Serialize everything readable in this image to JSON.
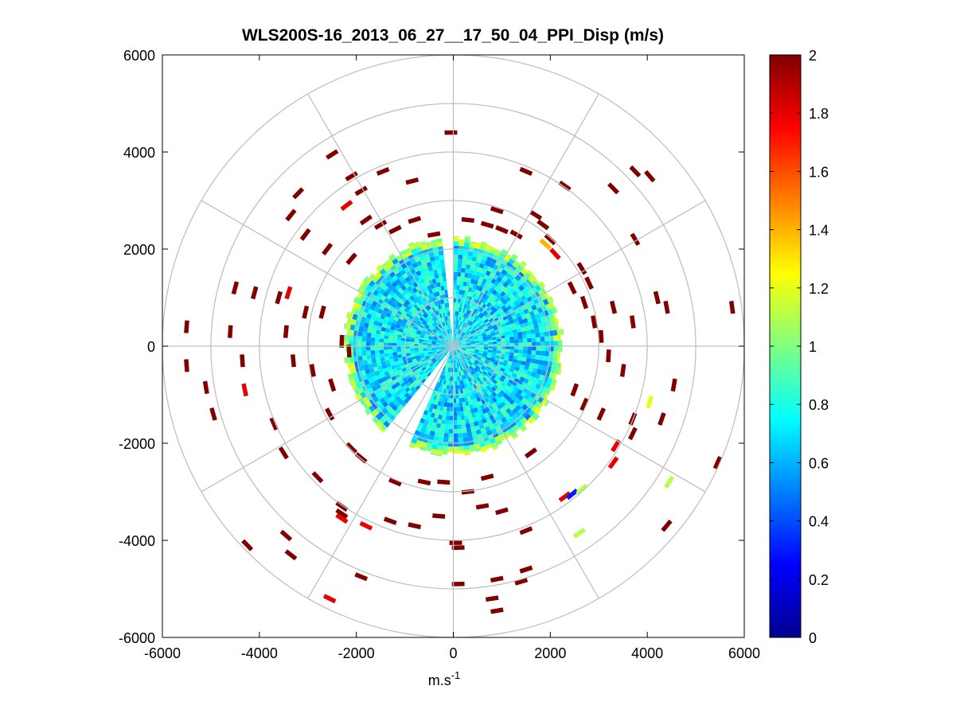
{
  "chart_data": {
    "type": "heatmap",
    "plot_style": "polar-ppi",
    "title": "WLS200S-16_2013_06_27__17_50_04_PPI_Disp (m/s)",
    "xlabel": "m.s",
    "xlabel_sup": "-1",
    "ylabel": "",
    "xlim": [
      -6000,
      6000
    ],
    "ylim": [
      -6000,
      6000
    ],
    "xticks": [
      -6000,
      -4000,
      -2000,
      0,
      2000,
      4000,
      6000
    ],
    "yticks": [
      -6000,
      -4000,
      -2000,
      0,
      2000,
      4000,
      6000
    ],
    "xtick_labels": [
      "-6000",
      "-4000",
      "-2000",
      "0",
      "2000",
      "4000",
      "6000"
    ],
    "ytick_labels": [
      "-6000",
      "-4000",
      "-2000",
      "0",
      "2000",
      "4000",
      "6000"
    ],
    "polar_grid": {
      "ring_radii": [
        1000,
        2000,
        3000,
        4000,
        5000,
        6000
      ],
      "spoke_angles_deg": [
        0,
        30,
        60,
        90,
        120,
        150,
        180,
        210,
        240,
        270,
        300,
        330
      ],
      "color": "#c0c0c0"
    },
    "colorbar": {
      "colormap": "jet",
      "range": [
        0,
        2
      ],
      "ticks": [
        0,
        0.2,
        0.4,
        0.6,
        0.8,
        1,
        1.2,
        1.4,
        1.6,
        1.8,
        2
      ],
      "tick_labels": [
        "0",
        "0.2",
        "0.4",
        "0.6",
        "0.8",
        "1",
        "1.2",
        "1.4",
        "1.6",
        "1.8",
        "2"
      ]
    },
    "dense_region": {
      "max_range": 2300,
      "typical_value": 0.7,
      "edge_values": [
        1.0,
        1.15
      ],
      "gap_sectors_deg": [
        [
          -6,
          0
        ],
        [
          -155,
          -140
        ]
      ]
    },
    "scattered_cells": [
      {
        "x": -2500,
        "y": 3950,
        "v": 2
      },
      {
        "x": -2100,
        "y": 3500,
        "v": 2
      },
      {
        "x": -1900,
        "y": 3200,
        "v": 2
      },
      {
        "x": -2200,
        "y": 2900,
        "v": 1.8
      },
      {
        "x": -1800,
        "y": 2600,
        "v": 2
      },
      {
        "x": -1500,
        "y": 2500,
        "v": 2
      },
      {
        "x": -1200,
        "y": 2400,
        "v": 2
      },
      {
        "x": -800,
        "y": 2600,
        "v": 2
      },
      {
        "x": -400,
        "y": 2300,
        "v": 2
      },
      {
        "x": -3200,
        "y": 3150,
        "v": 2
      },
      {
        "x": -3350,
        "y": 2700,
        "v": 2
      },
      {
        "x": -3050,
        "y": 2300,
        "v": 2
      },
      {
        "x": -2600,
        "y": 2000,
        "v": 2
      },
      {
        "x": -2100,
        "y": 1800,
        "v": 2
      },
      {
        "x": -1450,
        "y": 3600,
        "v": 2
      },
      {
        "x": -850,
        "y": 3400,
        "v": 2
      },
      {
        "x": -50,
        "y": 4400,
        "v": 2
      },
      {
        "x": 1500,
        "y": 3600,
        "v": 2
      },
      {
        "x": 2300,
        "y": 3300,
        "v": 2
      },
      {
        "x": 3300,
        "y": 3250,
        "v": 2
      },
      {
        "x": 3750,
        "y": 3600,
        "v": 2
      },
      {
        "x": 4050,
        "y": 3500,
        "v": 2
      },
      {
        "x": 3750,
        "y": 2200,
        "v": 2
      },
      {
        "x": 2000,
        "y": 2200,
        "v": 2
      },
      {
        "x": 1850,
        "y": 2500,
        "v": 2
      },
      {
        "x": 1900,
        "y": 2100,
        "v": 1.4
      },
      {
        "x": 2100,
        "y": 1900,
        "v": 1.8
      },
      {
        "x": 300,
        "y": 2600,
        "v": 2
      },
      {
        "x": 700,
        "y": 2500,
        "v": 2
      },
      {
        "x": 1000,
        "y": 2400,
        "v": 2
      },
      {
        "x": 1300,
        "y": 2300,
        "v": 2
      },
      {
        "x": 2450,
        "y": 1200,
        "v": 2
      },
      {
        "x": 2700,
        "y": 900,
        "v": 2
      },
      {
        "x": 2900,
        "y": 500,
        "v": 2
      },
      {
        "x": 3050,
        "y": 200,
        "v": 2
      },
      {
        "x": 3300,
        "y": 800,
        "v": 2
      },
      {
        "x": 3700,
        "y": 500,
        "v": 2
      },
      {
        "x": 4200,
        "y": 1000,
        "v": 2
      },
      {
        "x": 4400,
        "y": 800,
        "v": 2
      },
      {
        "x": 5750,
        "y": 800,
        "v": 2
      },
      {
        "x": 3200,
        "y": -200,
        "v": 2
      },
      {
        "x": 3500,
        "y": -500,
        "v": 2
      },
      {
        "x": 4300,
        "y": -1500,
        "v": 2
      },
      {
        "x": 4550,
        "y": -800,
        "v": 2
      },
      {
        "x": 4050,
        "y": -1150,
        "v": 1.2
      },
      {
        "x": 3700,
        "y": -1800,
        "v": 2
      },
      {
        "x": 3350,
        "y": -2050,
        "v": 1.8
      },
      {
        "x": 3300,
        "y": -2400,
        "v": 1.8
      },
      {
        "x": 3050,
        "y": -1400,
        "v": 2
      },
      {
        "x": 2700,
        "y": -1200,
        "v": 2
      },
      {
        "x": 2500,
        "y": -900,
        "v": 2
      },
      {
        "x": 5450,
        "y": -2400,
        "v": 2
      },
      {
        "x": 4450,
        "y": -2800,
        "v": 1.1
      },
      {
        "x": 4400,
        "y": -3700,
        "v": 2
      },
      {
        "x": 2300,
        "y": -3100,
        "v": 1.8
      },
      {
        "x": 2450,
        "y": -3050,
        "v": 0.3
      },
      {
        "x": 2650,
        "y": -2950,
        "v": 1.1
      },
      {
        "x": 2600,
        "y": -3850,
        "v": 1.1
      },
      {
        "x": 1500,
        "y": -3800,
        "v": 2
      },
      {
        "x": 1000,
        "y": -3400,
        "v": 2
      },
      {
        "x": 600,
        "y": -3300,
        "v": 2
      },
      {
        "x": 300,
        "y": -3000,
        "v": 2
      },
      {
        "x": -300,
        "y": -3500,
        "v": 2
      },
      {
        "x": -800,
        "y": -3700,
        "v": 2
      },
      {
        "x": -1300,
        "y": -3600,
        "v": 2
      },
      {
        "x": -2300,
        "y": -3300,
        "v": 2
      },
      {
        "x": -2300,
        "y": -3450,
        "v": 2
      },
      {
        "x": -2300,
        "y": -3550,
        "v": 1.8
      },
      {
        "x": -1800,
        "y": -3700,
        "v": 1.8
      },
      {
        "x": -3450,
        "y": -3900,
        "v": 2
      },
      {
        "x": -3350,
        "y": -4300,
        "v": 2
      },
      {
        "x": -4250,
        "y": -4100,
        "v": 2
      },
      {
        "x": -1900,
        "y": -4750,
        "v": 2
      },
      {
        "x": -2550,
        "y": -5200,
        "v": 1.8
      },
      {
        "x": 100,
        "y": -4900,
        "v": 2
      },
      {
        "x": 900,
        "y": -4800,
        "v": 2
      },
      {
        "x": 1500,
        "y": -4600,
        "v": 2
      },
      {
        "x": 1400,
        "y": -4850,
        "v": 2
      },
      {
        "x": 800,
        "y": -5200,
        "v": 2
      },
      {
        "x": 900,
        "y": -5450,
        "v": 2
      },
      {
        "x": 50,
        "y": -4050,
        "v": 2
      },
      {
        "x": 100,
        "y": -4150,
        "v": 2
      },
      {
        "x": -200,
        "y": -2800,
        "v": 2
      },
      {
        "x": -600,
        "y": -2800,
        "v": 2
      },
      {
        "x": -1200,
        "y": -2800,
        "v": 2
      },
      {
        "x": -1900,
        "y": -2300,
        "v": 2
      },
      {
        "x": -2100,
        "y": -2100,
        "v": 2
      },
      {
        "x": -2550,
        "y": -1400,
        "v": 2
      },
      {
        "x": -2500,
        "y": -800,
        "v": 2
      },
      {
        "x": -2900,
        "y": -500,
        "v": 2
      },
      {
        "x": -3300,
        "y": -300,
        "v": 2
      },
      {
        "x": -4300,
        "y": -900,
        "v": 1.8
      },
      {
        "x": -4350,
        "y": -300,
        "v": 2
      },
      {
        "x": -4950,
        "y": -1400,
        "v": 2
      },
      {
        "x": -5500,
        "y": -400,
        "v": 2
      },
      {
        "x": -5100,
        "y": -850,
        "v": 2
      },
      {
        "x": -5500,
        "y": 400,
        "v": 2
      },
      {
        "x": -4600,
        "y": 300,
        "v": 2
      },
      {
        "x": -4500,
        "y": 1200,
        "v": 2
      },
      {
        "x": -4100,
        "y": 1100,
        "v": 2
      },
      {
        "x": -3600,
        "y": 1000,
        "v": 2
      },
      {
        "x": -3400,
        "y": 1100,
        "v": 1.8
      },
      {
        "x": -3050,
        "y": 700,
        "v": 2
      },
      {
        "x": -3450,
        "y": 300,
        "v": 2
      },
      {
        "x": -2700,
        "y": 700,
        "v": 2
      },
      {
        "x": -2300,
        "y": 100,
        "v": 2
      },
      {
        "x": -2150,
        "y": -100,
        "v": 2
      },
      {
        "x": -3700,
        "y": -1600,
        "v": 2
      },
      {
        "x": -3500,
        "y": -2200,
        "v": 2
      },
      {
        "x": -2800,
        "y": -2700,
        "v": 2
      },
      {
        "x": 1600,
        "y": -2200,
        "v": 2
      },
      {
        "x": 700,
        "y": -2700,
        "v": 2
      },
      {
        "x": 3700,
        "y": -1500,
        "v": 2
      },
      {
        "x": 900,
        "y": 2800,
        "v": 2
      },
      {
        "x": 1700,
        "y": 2700,
        "v": 2
      },
      {
        "x": 2650,
        "y": 1600,
        "v": 2
      },
      {
        "x": 2800,
        "y": 1300,
        "v": 2
      }
    ]
  }
}
